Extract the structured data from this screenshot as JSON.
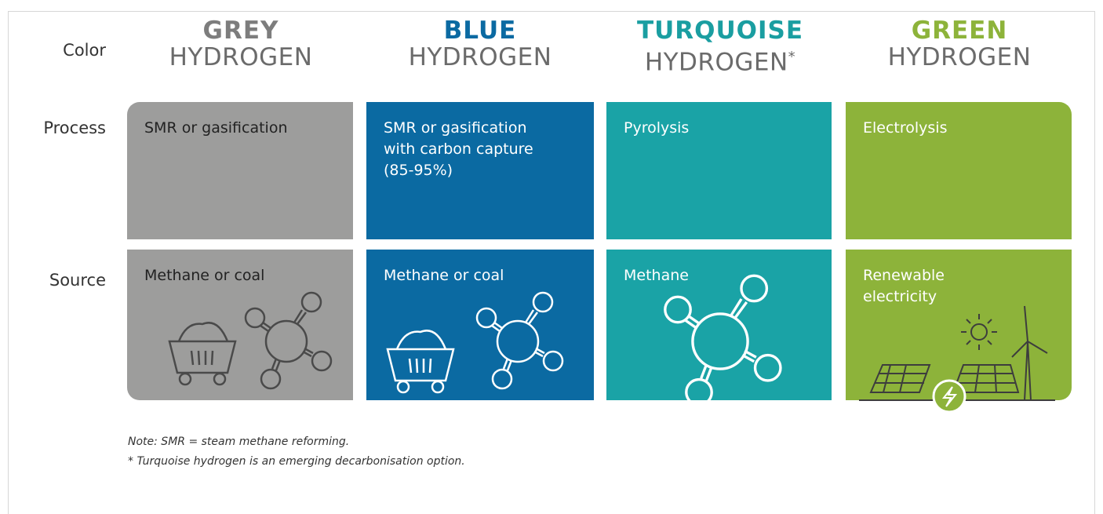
{
  "row_labels": [
    "Color",
    "Process",
    "Source"
  ],
  "columns": [
    {
      "name": "GREY",
      "subtitle": "HYDROGEN",
      "process": [
        "SMR or gasification"
      ],
      "source": [
        "Methane or coal"
      ]
    },
    {
      "name": "BLUE",
      "subtitle": "HYDROGEN",
      "process": [
        "SMR or gasification",
        "with carbon capture",
        "(85-95%)"
      ],
      "source": [
        "Methane or coal"
      ]
    },
    {
      "name": "TURQUOISE",
      "subtitle": "HYDROGEN",
      "marker": "*",
      "process": [
        "Pyrolysis"
      ],
      "source": [
        "Methane"
      ]
    },
    {
      "name": "GREEN",
      "subtitle": "HYDROGEN",
      "process": [
        "Electrolysis"
      ],
      "source": [
        "Renewable",
        "electricity"
      ]
    }
  ],
  "notes": [
    "Note: SMR = steam methane reforming.",
    "* Turquoise hydrogen is an emerging decarbonisation option."
  ]
}
